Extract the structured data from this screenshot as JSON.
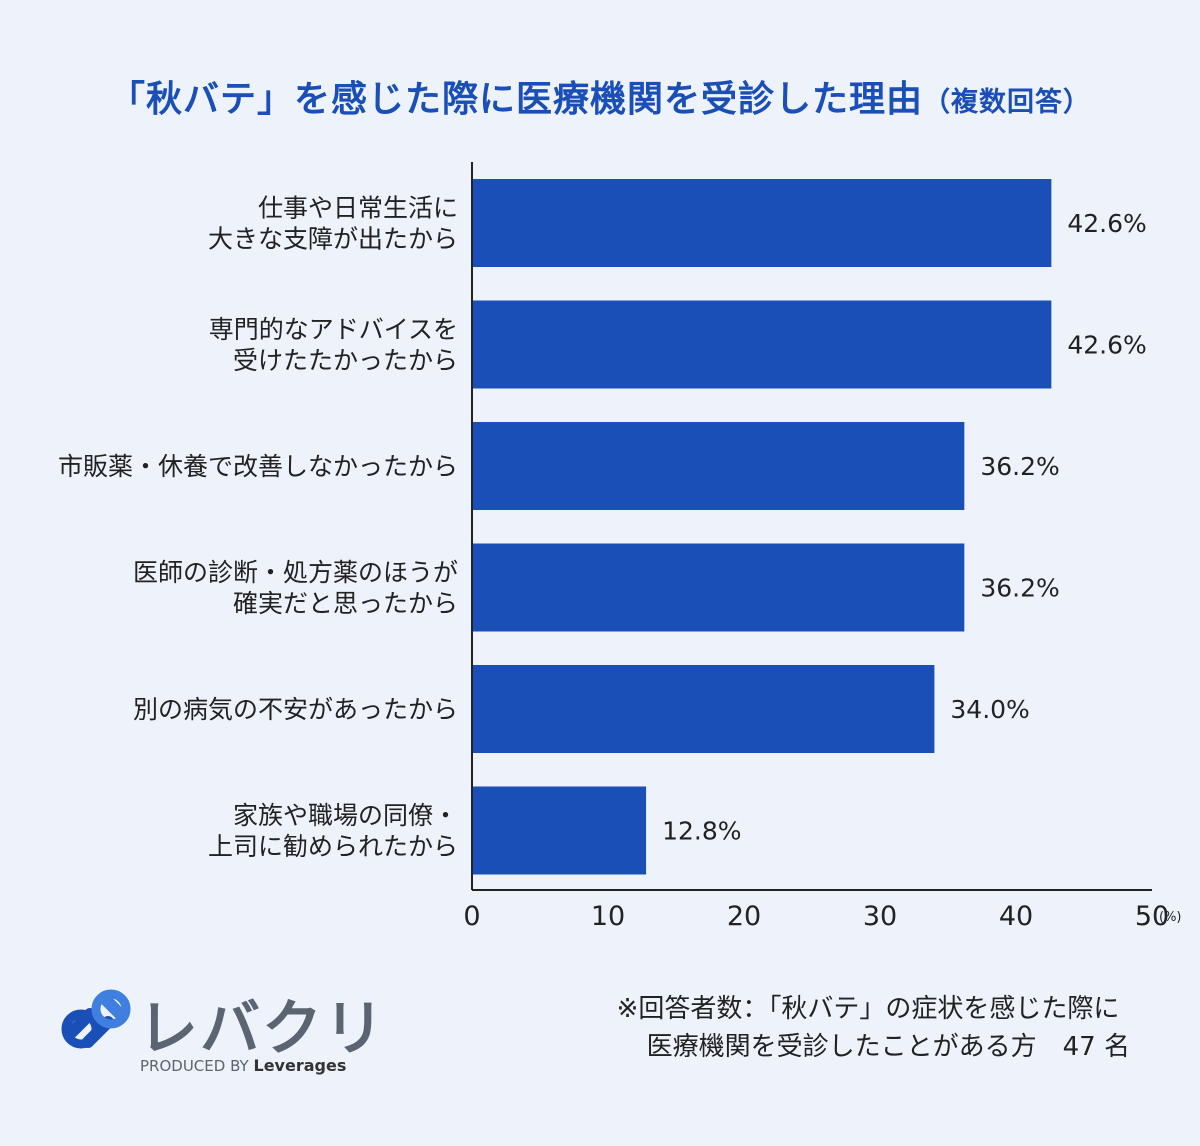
{
  "title": {
    "main": "「秋バテ」を感じた際に医療機関を受診した理由",
    "sub": "（複数回答）"
  },
  "colors": {
    "bar": "#1a4fb8",
    "title": "#1a4fb8",
    "background": "#eef2fb"
  },
  "chart_data": {
    "type": "bar",
    "orientation": "horizontal",
    "categories": [
      [
        "仕事や日常生活に",
        "大きな支障が出たから"
      ],
      [
        "専門的なアドバイスを",
        "受けたたかったから"
      ],
      [
        "市販薬・休養で改善しなかったから"
      ],
      [
        "医師の診断・処方薬のほうが",
        "確実だと思ったから"
      ],
      [
        "別の病気の不安があったから"
      ],
      [
        "家族や職場の同僚・",
        "上司に勧められたから"
      ]
    ],
    "values": [
      42.6,
      42.6,
      36.2,
      36.2,
      34.0,
      12.8
    ],
    "value_labels": [
      "42.6%",
      "42.6%",
      "36.2%",
      "36.2%",
      "34.0%",
      "12.8%"
    ],
    "xlim": [
      0,
      50
    ],
    "xticks": [
      "0",
      "10",
      "20",
      "30",
      "40",
      "50"
    ],
    "xunit": "(%)",
    "grid": false
  },
  "logo": {
    "name": "レバクリ",
    "produced_by": "PRODUCED BY",
    "brand": "Leverages"
  },
  "note": {
    "line1": "※回答者数：「秋バテ」の症状を感じた際に",
    "line2": "医療機関を受診したことがある方　47 名"
  }
}
